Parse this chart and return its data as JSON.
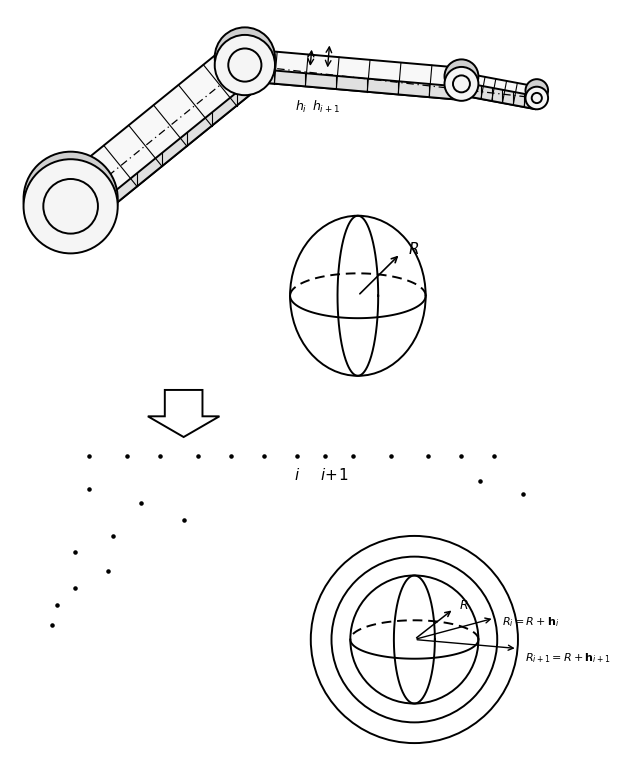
{
  "bg_color": "#ffffff",
  "line_color": "#000000",
  "fig_width": 6.2,
  "fig_height": 7.78,
  "dpi": 100
}
